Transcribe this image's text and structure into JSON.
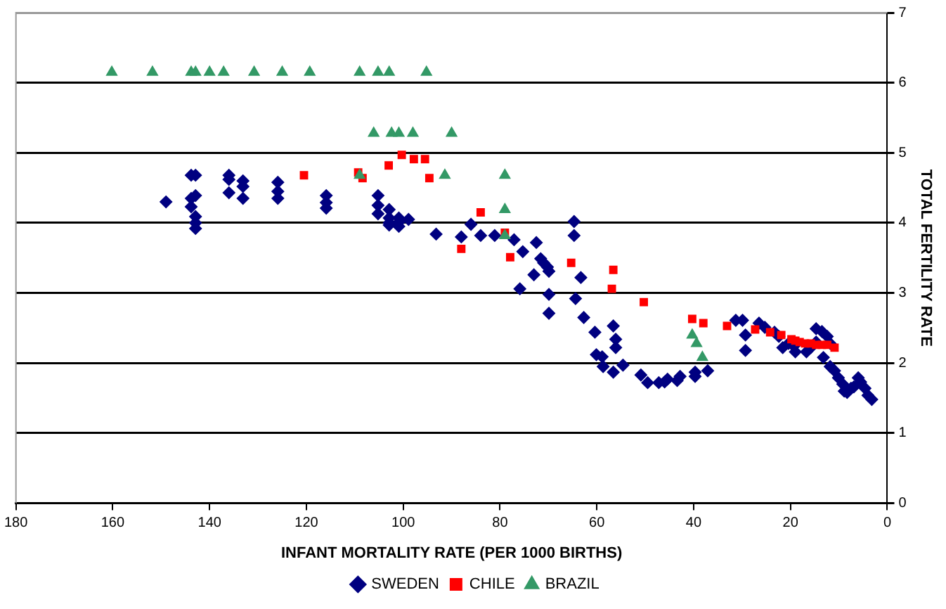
{
  "chart_data": {
    "type": "scatter",
    "xlabel": "INFANT MORTALITY RATE (PER 1000 BIRTHS)",
    "ylabel": "TOTAL FERTILITY RATE",
    "xlim": [
      180,
      0
    ],
    "xticks": [
      180,
      160,
      140,
      120,
      100,
      80,
      60,
      40,
      20,
      0
    ],
    "ylim": [
      0,
      7
    ],
    "yticks": [
      0,
      1,
      2,
      3,
      4,
      5,
      6,
      7
    ],
    "grid": "y",
    "legend": "bottom",
    "series": [
      {
        "name": "SWEDEN",
        "color": "#000080",
        "marker": "diamond",
        "x": [
          149,
          143.8,
          142.9,
          143.8,
          143.8,
          142.9,
          142.9,
          142.9,
          142.9,
          136,
          136,
          136,
          133.1,
          133.1,
          133.1,
          125.9,
          125.9,
          125.9,
          115.9,
          115.9,
          115.9,
          105.2,
          105.2,
          105.2,
          102.9,
          102.9,
          102.9,
          102.9,
          100.9,
          100.9,
          100.9,
          98.9,
          93.2,
          88,
          86,
          84,
          81.1,
          77.1,
          75.3,
          72.5,
          71.6,
          71,
          70.2,
          64.7,
          64.7,
          75.9,
          73,
          69.9,
          69.9,
          69.9,
          64.4,
          63.3,
          62.7,
          60.4,
          60.1,
          58.9,
          58.7,
          56.6,
          56.6,
          56.1,
          56.1,
          54.6,
          50.9,
          49.5,
          47.2,
          46,
          45.4,
          43.4,
          42.8,
          39.7,
          39.7,
          37.1,
          31.3,
          29.9,
          29.3,
          29.3,
          26.5,
          25.3,
          23.3,
          22.4,
          21.6,
          20.4,
          19.3,
          19,
          16.7,
          15.8,
          14.7,
          14.7,
          13.5,
          12.4,
          11.8,
          13.2,
          11.8,
          10.9,
          10.1,
          9.2,
          8.9,
          8.3,
          7.5,
          6.9,
          6,
          5.5,
          4.6,
          4,
          3.2
        ],
        "values": [
          4.3,
          4.68,
          4.68,
          4.35,
          4.23,
          4.39,
          4.09,
          4,
          3.92,
          4.68,
          4.62,
          4.43,
          4.6,
          4.52,
          4.35,
          4.58,
          4.45,
          4.35,
          4.39,
          4.29,
          4.21,
          4.39,
          4.25,
          4.13,
          4.19,
          4.07,
          4,
          3.97,
          4.07,
          4.01,
          3.95,
          4.05,
          3.84,
          3.8,
          3.98,
          3.82,
          3.82,
          3.76,
          3.59,
          3.72,
          3.49,
          3.43,
          3.37,
          4.02,
          3.82,
          3.06,
          3.26,
          3.31,
          2.98,
          2.71,
          2.92,
          3.22,
          2.65,
          2.44,
          2.12,
          2.09,
          1.95,
          1.87,
          2.53,
          2.34,
          2.22,
          1.97,
          1.83,
          1.72,
          1.72,
          1.73,
          1.77,
          1.75,
          1.81,
          1.87,
          1.81,
          1.89,
          2.61,
          2.61,
          2.4,
          2.18,
          2.57,
          2.51,
          2.44,
          2.38,
          2.22,
          2.28,
          2.24,
          2.16,
          2.16,
          2.22,
          2.3,
          2.49,
          2.45,
          2.38,
          2.28,
          2.08,
          1.95,
          1.89,
          1.79,
          1.7,
          1.6,
          1.58,
          1.64,
          1.66,
          1.79,
          1.73,
          1.64,
          1.54,
          1.48
        ]
      },
      {
        "name": "CHILE",
        "color": "#ff0000",
        "marker": "square",
        "x": [
          120.5,
          109.3,
          108.4,
          103,
          100.3,
          97.8,
          95.5,
          94.6,
          88,
          84,
          79,
          77.9,
          65.3,
          56.6,
          56.9,
          50.3,
          40.3,
          38,
          33.1,
          27.3,
          24.2,
          21.9,
          19.8,
          19,
          18.1,
          17,
          15.8,
          14.7,
          13.5,
          12.4,
          10.9
        ],
        "values": [
          4.68,
          4.72,
          4.64,
          4.82,
          4.97,
          4.91,
          4.91,
          4.64,
          3.63,
          4.15,
          3.86,
          3.51,
          3.43,
          3.33,
          3.06,
          2.87,
          2.63,
          2.57,
          2.53,
          2.48,
          2.44,
          2.4,
          2.34,
          2.32,
          2.3,
          2.28,
          2.28,
          2.26,
          2.26,
          2.26,
          2.22
        ]
      },
      {
        "name": "BRAZIL",
        "color": "#339966",
        "marker": "triangle",
        "x": [
          160.2,
          151.8,
          143.8,
          142.9,
          140,
          137.1,
          130.8,
          125,
          119.3,
          109,
          105.2,
          102.9,
          95.2,
          106.1,
          102.4,
          100.9,
          98,
          90,
          91.4,
          109,
          79,
          79,
          79,
          40.3,
          39.4,
          38.2
        ],
        "values": [
          6.15,
          6.15,
          6.15,
          6.15,
          6.15,
          6.15,
          6.15,
          6.15,
          6.15,
          6.15,
          6.15,
          6.15,
          6.15,
          5.28,
          5.28,
          5.28,
          5.28,
          5.28,
          4.68,
          4.68,
          4.68,
          4.19,
          3.82,
          2.4,
          2.28,
          2.08
        ]
      }
    ]
  }
}
